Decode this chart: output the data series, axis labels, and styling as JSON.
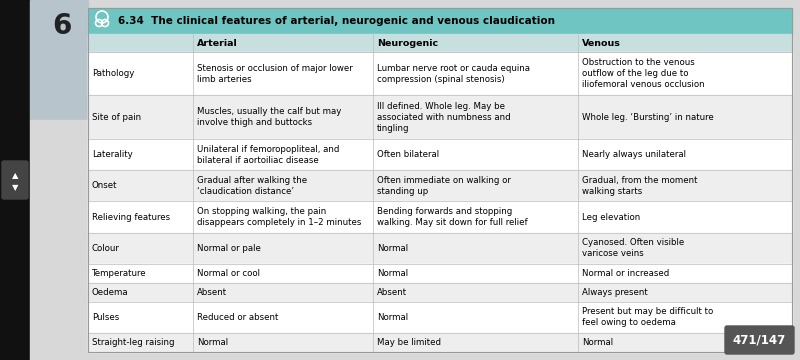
{
  "title": "6.34  The clinical features of arterial, neurogenic and venous claudication",
  "header_bg": "#6ec5c2",
  "col_header_bg": "#c8dfe0",
  "row_bg_white": "#ffffff",
  "row_bg_gray": "#eeeeee",
  "line_color": "#bbbbbb",
  "cell_font_size": 6.2,
  "header_font_size": 6.8,
  "title_font_size": 7.5,
  "col_headers": [
    "",
    "Arterial",
    "Neurogenic",
    "Venous"
  ],
  "rows": [
    {
      "label": "Pathology",
      "arterial": "Stenosis or occlusion of major lower\nlimb arteries",
      "neurogenic": "Lumbar nerve root or cauda equina\ncompression (spinal stenosis)",
      "venous": "Obstruction to the venous\noutflow of the leg due to\niliofemoral venous occlusion"
    },
    {
      "label": "Site of pain",
      "arterial": "Muscles, usually the calf but may\ninvolve thigh and buttocks",
      "neurogenic": "Ill defined. Whole leg. May be\nassociated with numbness and\ntingling",
      "venous": "Whole leg. ‘Bursting’ in nature"
    },
    {
      "label": "Laterality",
      "arterial": "Unilateral if femoropopliteal, and\nbilateral if aortoiliac disease",
      "neurogenic": "Often bilateral",
      "venous": "Nearly always unilateral"
    },
    {
      "label": "Onset",
      "arterial": "Gradual after walking the\n‘claudication distance’",
      "neurogenic": "Often immediate on walking or\nstanding up",
      "venous": "Gradual, from the moment\nwalking starts"
    },
    {
      "label": "Relieving features",
      "arterial": "On stopping walking, the pain\ndisappears completely in 1–2 minutes",
      "neurogenic": "Bending forwards and stopping\nwalking. May sit down for full relief",
      "venous": "Leg elevation"
    },
    {
      "label": "Colour",
      "arterial": "Normal or pale",
      "neurogenic": "Normal",
      "venous": "Cyanosed. Often visible\nvaricose veins"
    },
    {
      "label": "Temperature",
      "arterial": "Normal or cool",
      "neurogenic": "Normal",
      "venous": "Normal or increased"
    },
    {
      "label": "Oedema",
      "arterial": "Absent",
      "neurogenic": "Absent",
      "venous": "Always present"
    },
    {
      "label": "Pulses",
      "arterial": "Reduced or absent",
      "neurogenic": "Normal",
      "venous": "Present but may be difficult to\nfeel owing to oedema"
    },
    {
      "label": "Straight-leg raising",
      "arterial": "Normal",
      "neurogenic": "May be limited",
      "venous": "Normal"
    }
  ],
  "page_number": "471/147",
  "chapter_number": "6",
  "left_strip_color": "#111111",
  "left_strip2_color": "#b8c4cc",
  "outer_bg": "#d8d8d8",
  "arrow_box_color": "#444444"
}
